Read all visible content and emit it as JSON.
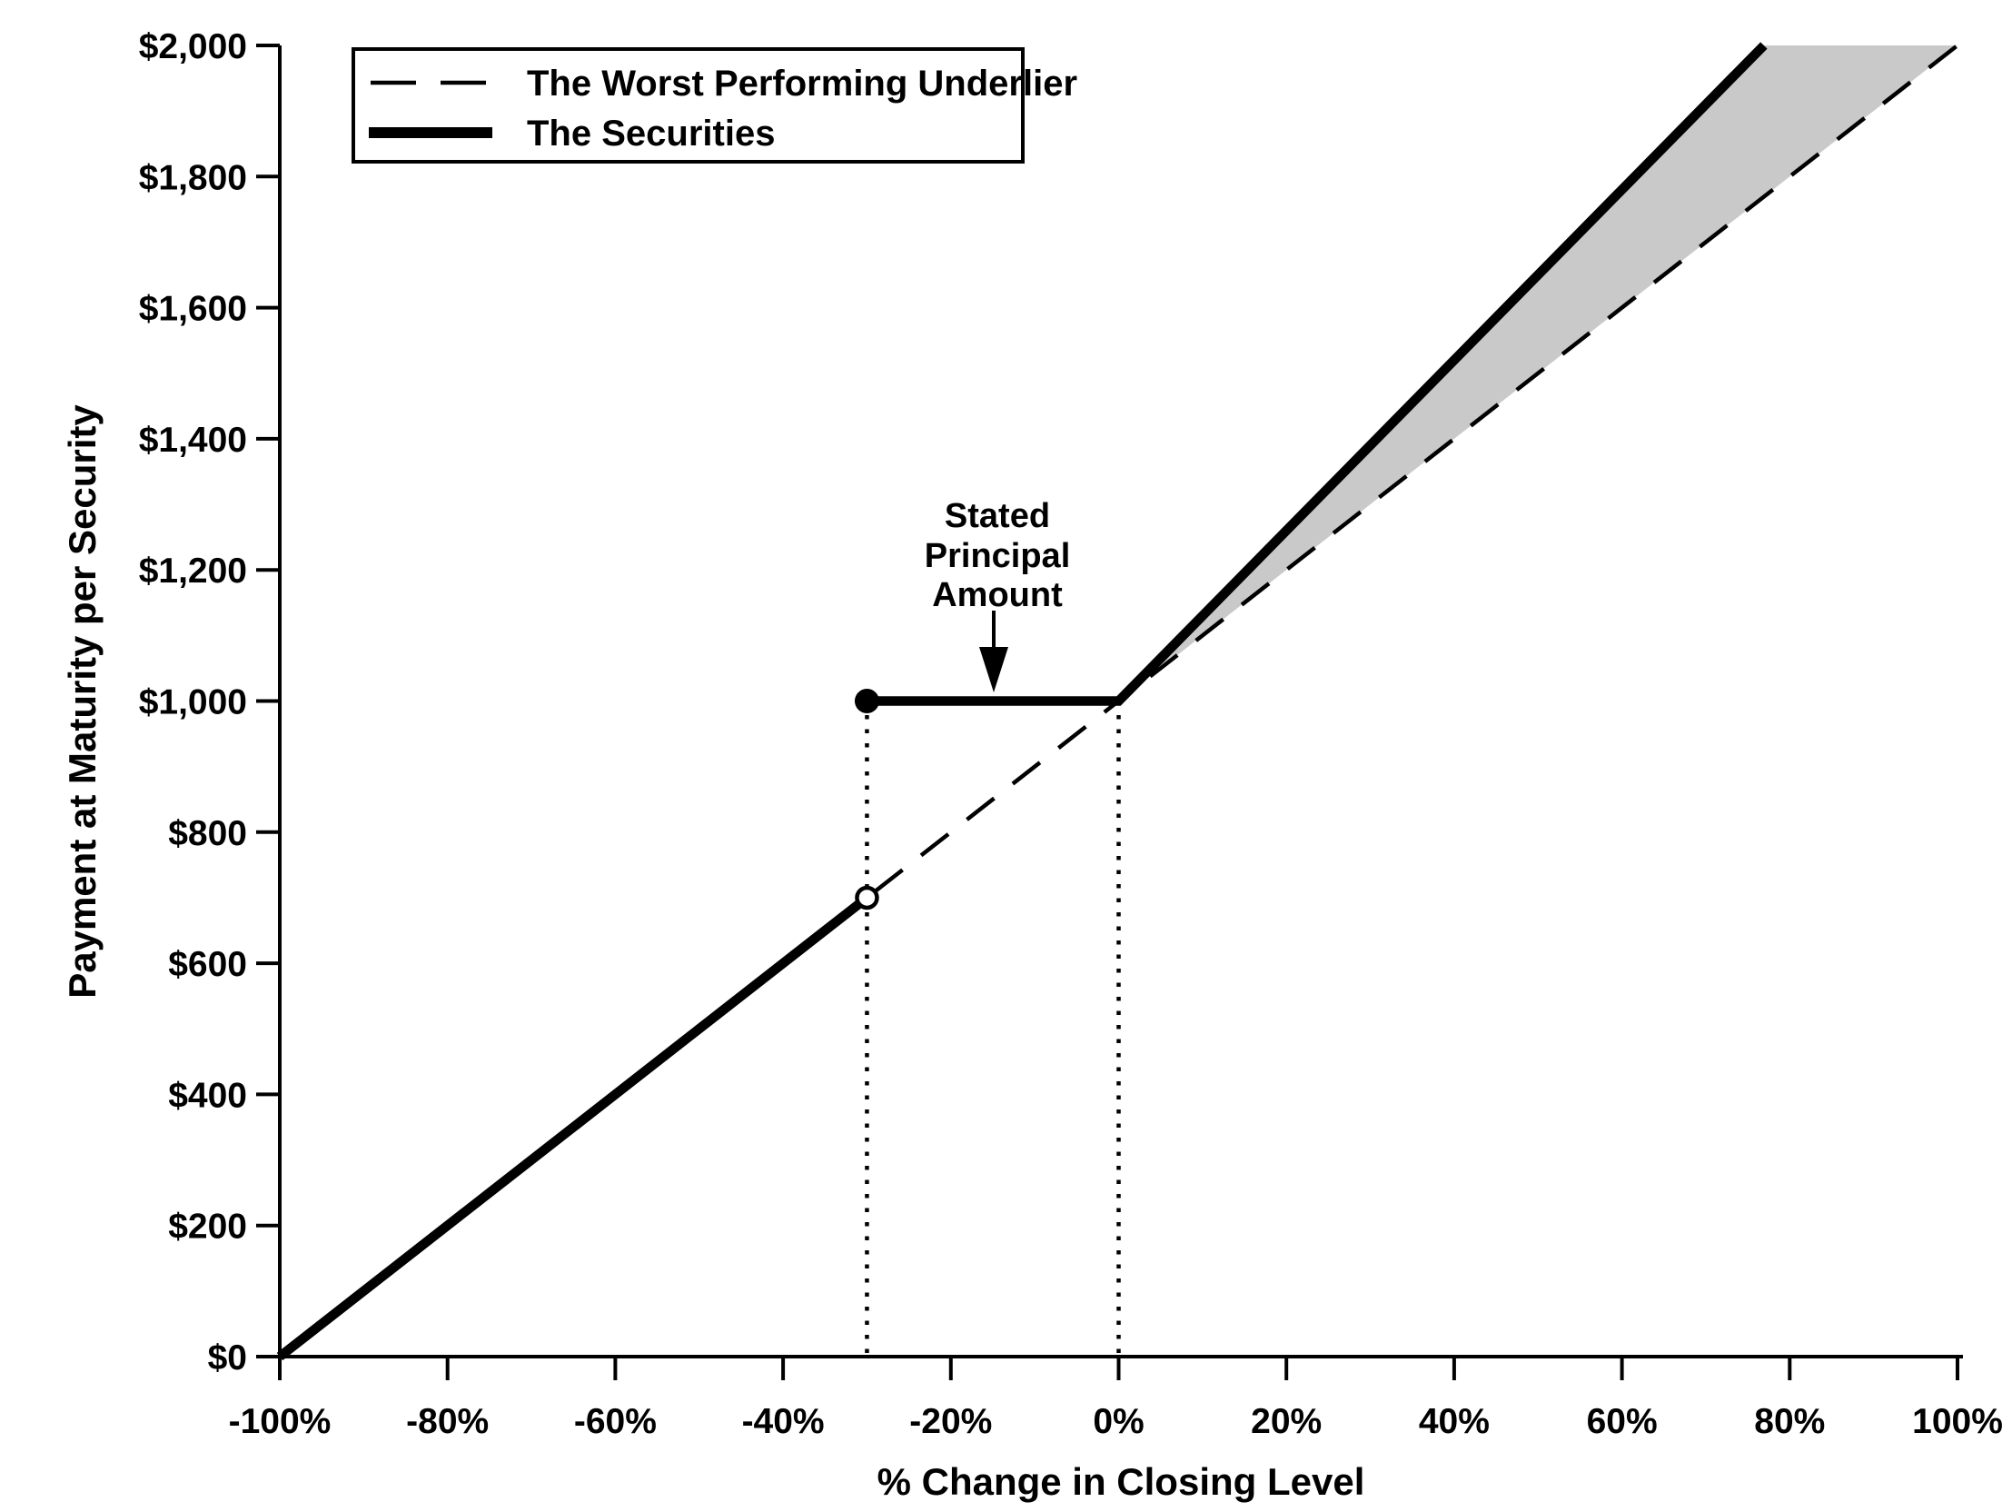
{
  "colors": {
    "foreground": "#000000",
    "background": "#ffffff",
    "shaded_region": "#c9c9c9"
  },
  "chart_data": {
    "type": "line",
    "title": "",
    "xlabel": "% Change in Closing Level",
    "ylabel": "Payment at Maturity per Security",
    "xlim": [
      -100,
      100
    ],
    "ylim": [
      0,
      2000
    ],
    "grid": false,
    "x_tick_values": [
      -100,
      -80,
      -60,
      -40,
      -20,
      0,
      20,
      40,
      60,
      80,
      100
    ],
    "x_tick_labels": [
      "-100%",
      "-80%",
      "-60%",
      "-40%",
      "-20%",
      "0%",
      "20%",
      "40%",
      "60%",
      "80%",
      "100%"
    ],
    "y_tick_values": [
      0,
      200,
      400,
      600,
      800,
      1000,
      1200,
      1400,
      1600,
      1800,
      2000
    ],
    "y_tick_labels": [
      "$0",
      "$200",
      "$400",
      "$600",
      "$800",
      "$1,000",
      "$1,200",
      "$1,400",
      "$1,600",
      "$1,800",
      "$2,000"
    ],
    "legend": {
      "position": "top-left",
      "border": true,
      "items": [
        {
          "label": "The Worst Performing Underlier",
          "style": "dashed"
        },
        {
          "label": "The Securities",
          "style": "solid-thick"
        }
      ]
    },
    "series": [
      {
        "name": "The Worst Performing Underlier",
        "style": "dashed",
        "points": [
          [
            -100,
            0
          ],
          [
            100,
            2000
          ]
        ]
      },
      {
        "name": "The Securities",
        "style": "solid-thick",
        "segments": [
          [
            [
              -100,
              0
            ],
            [
              -30,
              700
            ]
          ],
          [
            [
              -30,
              1000
            ],
            [
              0,
              1000
            ],
            [
              76.92,
              2000
            ]
          ]
        ],
        "threshold_pct": -30,
        "principal": 1000,
        "value_at_threshold_from_below": 700,
        "upside_leverage": 1.3,
        "pct_at_max_payment_shown": 76.92
      }
    ],
    "markers": [
      {
        "shape": "open-circle",
        "x": -30,
        "y": 700
      },
      {
        "shape": "filled-circle",
        "x": -30,
        "y": 1000
      }
    ],
    "reference_lines": [
      {
        "style": "dotted",
        "orientation": "vertical",
        "x": -30,
        "y_top": 1000
      },
      {
        "style": "dotted",
        "orientation": "vertical",
        "x": 0,
        "y_top": 1000
      }
    ],
    "shaded_region": {
      "color": "#c9c9c9",
      "points": [
        [
          0,
          1000
        ],
        [
          76.92,
          2000
        ],
        [
          100,
          2000
        ]
      ]
    },
    "annotation": {
      "lines": [
        "Stated",
        "Principal",
        "Amount"
      ],
      "points_to": {
        "x": -15,
        "y": 1000
      }
    }
  }
}
